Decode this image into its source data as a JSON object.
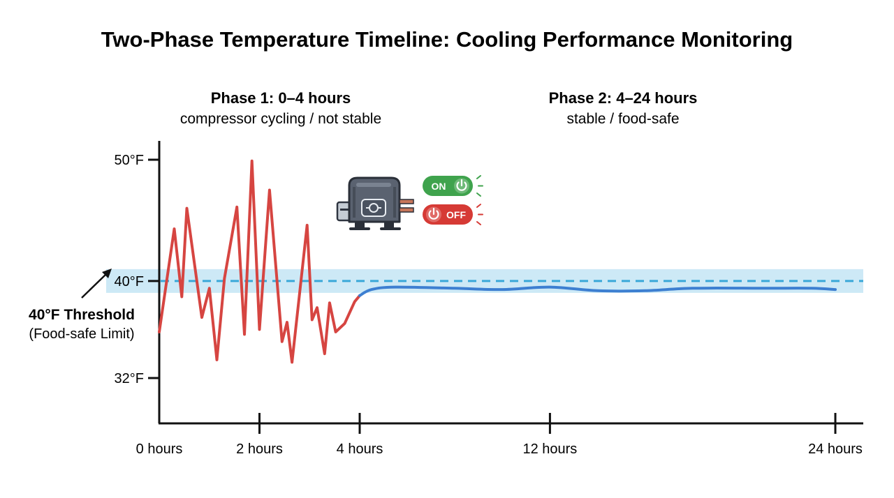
{
  "chart_data": {
    "type": "line",
    "title": "Two-Phase Temperature Timeline: Cooling Performance Monitoring",
    "xlabel": "",
    "ylabel": "",
    "x_ticks": [
      {
        "value": 0,
        "label": "0 hours"
      },
      {
        "value": 2,
        "label": "2 hours"
      },
      {
        "value": 4,
        "label": "4 hours"
      },
      {
        "value": 12,
        "label": "12 hours"
      },
      {
        "value": 24,
        "label": "24 hours"
      }
    ],
    "y_ticks": [
      {
        "value": 32,
        "label": "32°F"
      },
      {
        "value": 40,
        "label": "40°F"
      },
      {
        "value": 50,
        "label": "50°F"
      }
    ],
    "phases": [
      {
        "title": "Phase 1: 0–4 hours",
        "subtitle": "compressor cycling / not stable",
        "color": "#d64541"
      },
      {
        "title": "Phase 2: 4–24 hours",
        "subtitle": "stable / food-safe",
        "color": "#3d7fd1"
      }
    ],
    "threshold": {
      "value": 40,
      "title": "40°F Threshold",
      "subtitle": "(Food-safe Limit)",
      "line_color": "#3aa8d8",
      "band_color": "#cde9f6"
    },
    "series": [
      {
        "values": [
          [
            0.0,
            35.8
          ],
          [
            0.3,
            44.3
          ],
          [
            0.45,
            38.7
          ],
          [
            0.55,
            46.0
          ],
          [
            0.85,
            37.0
          ],
          [
            1.0,
            39.4
          ],
          [
            1.15,
            33.5
          ],
          [
            1.3,
            40.2
          ],
          [
            1.55,
            46.1
          ],
          [
            1.7,
            35.6
          ],
          [
            1.85,
            49.9
          ],
          [
            2.0,
            36.0
          ],
          [
            2.2,
            47.5
          ],
          [
            2.45,
            35.0
          ],
          [
            2.55,
            36.6
          ],
          [
            2.65,
            33.3
          ],
          [
            2.95,
            44.6
          ],
          [
            3.05,
            36.8
          ],
          [
            3.15,
            37.8
          ],
          [
            3.3,
            34.0
          ],
          [
            3.4,
            38.2
          ],
          [
            3.52,
            35.8
          ],
          [
            3.7,
            36.5
          ],
          [
            3.9,
            38.3
          ],
          [
            4.0,
            38.8
          ]
        ]
      },
      {
        "values": [
          [
            4.0,
            38.8
          ],
          [
            4.5,
            39.3
          ],
          [
            5.5,
            39.5
          ],
          [
            8.0,
            39.4
          ],
          [
            10.0,
            39.3
          ],
          [
            12.0,
            39.5
          ],
          [
            14.0,
            39.2
          ],
          [
            16.0,
            39.2
          ],
          [
            18.0,
            39.4
          ],
          [
            21.0,
            39.4
          ],
          [
            23.0,
            39.4
          ],
          [
            24.0,
            39.3
          ]
        ]
      }
    ],
    "compressor": {
      "icon": "compressor-icon",
      "on_label": "ON",
      "off_label": "OFF",
      "on_color": "#3fa34d",
      "off_color": "#d63a35"
    }
  }
}
